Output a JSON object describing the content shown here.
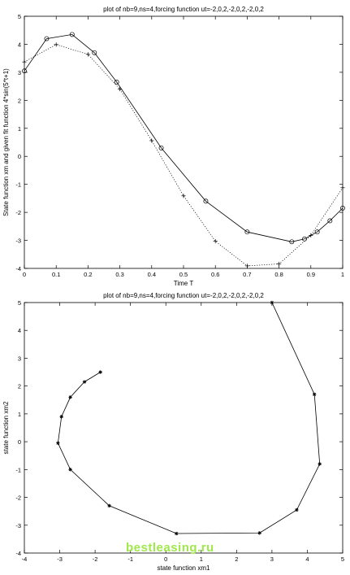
{
  "chart_data": [
    {
      "type": "line",
      "title": "plot of nb=9,ns=4,forcing function ut=-2,0,2,-2,0,2,-2,0,2",
      "xlabel": "Time T",
      "ylabel": "State function xm and given fit function 4*sin(5*t+1)",
      "xlim": [
        0,
        1
      ],
      "ylim": [
        -4,
        5
      ],
      "xticks": [
        "0",
        "0.1",
        "0.2",
        "0.3",
        "0.4",
        "0.5",
        "0.6",
        "0.7",
        "0.8",
        "0.9",
        "1"
      ],
      "yticks": [
        "-4",
        "-3",
        "-2",
        "-1",
        "0",
        "1",
        "2",
        "3",
        "4",
        "5"
      ],
      "grid": false,
      "series": [
        {
          "style": "solid-circle",
          "x": [
            0,
            0.07,
            0.15,
            0.22,
            0.29,
            0.43,
            0.57,
            0.7,
            0.84,
            0.88,
            0.92,
            0.96,
            1.0
          ],
          "y": [
            3.05,
            4.2,
            4.35,
            3.7,
            2.65,
            0.3,
            -1.6,
            -2.7,
            -3.05,
            -2.95,
            -2.7,
            -2.3,
            -1.85
          ]
        },
        {
          "style": "dotted-plus",
          "x": [
            0,
            0.1,
            0.2,
            0.3,
            0.4,
            0.5,
            0.6,
            0.7,
            0.8,
            0.9,
            1.0
          ],
          "y": [
            3.37,
            3.99,
            3.64,
            2.4,
            0.56,
            -1.41,
            -3.03,
            -3.91,
            -3.84,
            -2.82,
            -1.12
          ]
        }
      ]
    },
    {
      "type": "line",
      "title": "plot of nb=9,ns=4,forcing function ut=-2,0,2,-2,0,2,-2,0,2",
      "xlabel": "state function xm1",
      "ylabel": "state function xm2",
      "xlim": [
        -4,
        5
      ],
      "ylim": [
        -4,
        5
      ],
      "xticks": [
        "-4",
        "-3",
        "-2",
        "-1",
        "0",
        "1",
        "2",
        "3",
        "4",
        "5"
      ],
      "yticks": [
        "-4",
        "-3",
        "-2",
        "-1",
        "0",
        "1",
        "2",
        "3",
        "4",
        "5"
      ],
      "grid": false,
      "series": [
        {
          "style": "solid-star",
          "x": [
            3.0,
            4.2,
            4.35,
            3.7,
            2.65,
            0.3,
            -1.6,
            -2.7,
            -3.05,
            -2.95,
            -2.7,
            -2.3,
            -1.85
          ],
          "y": [
            5.0,
            1.7,
            -0.8,
            -2.45,
            -3.28,
            -3.3,
            -2.3,
            -1.0,
            -0.05,
            0.9,
            1.6,
            2.15,
            2.5
          ]
        }
      ]
    }
  ],
  "watermark": "bestleasing.ru"
}
